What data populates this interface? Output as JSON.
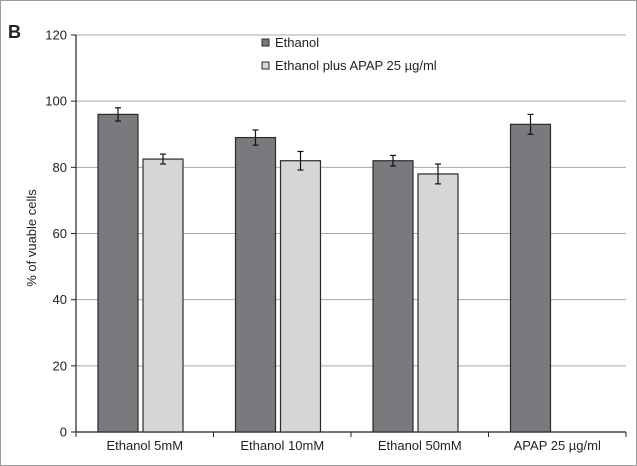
{
  "panel_label": "B",
  "chart_data": {
    "type": "bar",
    "title": "",
    "xlabel": "",
    "ylabel": "% of vuable cells",
    "ylim": [
      0,
      120
    ],
    "yticks": [
      0,
      20,
      40,
      60,
      80,
      100,
      120
    ],
    "grid": true,
    "legend_position": "top-center",
    "categories": [
      "Ethanol 5mM",
      "Ethanol 10mM",
      "Ethanol 50mM",
      "APAP 25 µg/ml"
    ],
    "series": [
      {
        "name": "Ethanol",
        "color": "#7a7a7e",
        "values": [
          96,
          89,
          82,
          93
        ],
        "errors": [
          2,
          2.3,
          1.6,
          3
        ]
      },
      {
        "name": "Ethanol plus APAP 25 µg/ml",
        "color": "#d6d6d6",
        "values": [
          82.5,
          82,
          78,
          null
        ],
        "errors": [
          1.5,
          2.8,
          3,
          null
        ]
      }
    ]
  }
}
